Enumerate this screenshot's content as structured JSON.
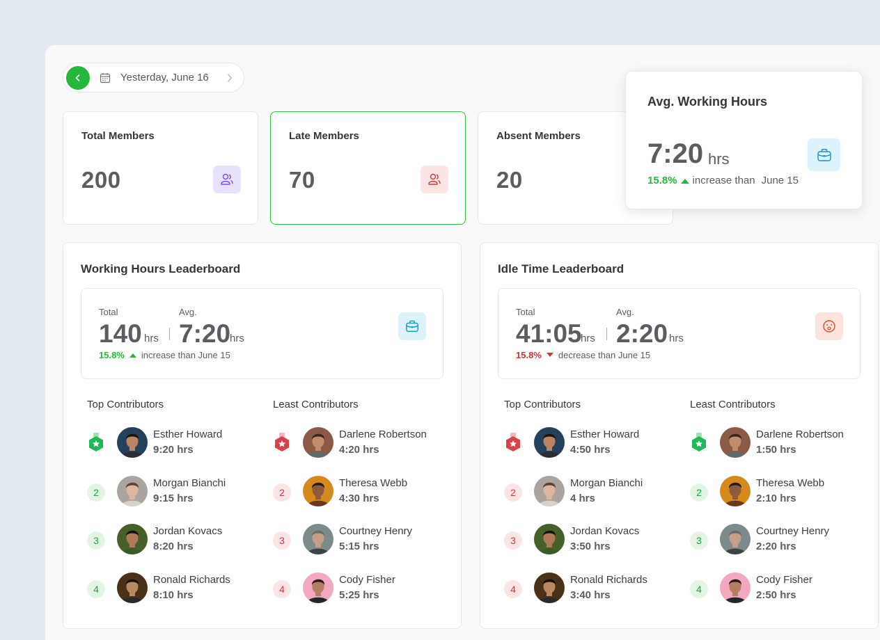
{
  "date_picker": {
    "label": "Yesterday, June 16"
  },
  "stats": {
    "total_members": {
      "title": "Total Members",
      "value": "200"
    },
    "late_members": {
      "title": "Late Members",
      "value": "70"
    },
    "absent_members": {
      "title": "Absent Members",
      "value": "20"
    },
    "avg_working_hours": {
      "title": "Avg. Working Hours",
      "value": "7:20",
      "unit": "hrs",
      "change": "15.8%",
      "change_text": "increase than",
      "compare_date": "June 15"
    }
  },
  "working_board": {
    "title": "Working Hours Leaderboard",
    "total_label": "Total",
    "total_value": "140",
    "total_unit": "hrs",
    "avg_label": "Avg.",
    "avg_value": "7:20",
    "avg_unit": "hrs",
    "change": "15.8%",
    "change_text": "increase than June 15",
    "top_title": "Top Contributors",
    "least_title": "Least Contributors",
    "top": [
      {
        "rank": "1",
        "name": "Esther Howard",
        "hours": "9:20 hrs"
      },
      {
        "rank": "2",
        "name": "Morgan Bianchi",
        "hours": "9:15 hrs"
      },
      {
        "rank": "3",
        "name": "Jordan Kovacs",
        "hours": "8:20 hrs"
      },
      {
        "rank": "4",
        "name": "Ronald Richards",
        "hours": "8:10 hrs"
      }
    ],
    "least": [
      {
        "rank": "1",
        "name": "Darlene Robertson",
        "hours": "4:20 hrs"
      },
      {
        "rank": "2",
        "name": "Theresa Webb",
        "hours": "4:30 hrs"
      },
      {
        "rank": "3",
        "name": "Courtney Henry",
        "hours": "5:15 hrs"
      },
      {
        "rank": "4",
        "name": "Cody Fisher",
        "hours": "5:25 hrs"
      }
    ]
  },
  "idle_board": {
    "title": "Idle Time Leaderboard",
    "total_label": "Total",
    "total_value": "41:05",
    "total_unit": "hrs",
    "avg_label": "Avg.",
    "avg_value": "2:20",
    "avg_unit": "hrs",
    "change": "15.8%",
    "change_text": "decrease than June 15",
    "top_title": "Top Contributors",
    "least_title": "Least Contributors",
    "top": [
      {
        "rank": "1",
        "name": "Esther Howard",
        "hours": "4:50 hrs"
      },
      {
        "rank": "2",
        "name": "Morgan Bianchi",
        "hours": "4 hrs"
      },
      {
        "rank": "3",
        "name": "Jordan Kovacs",
        "hours": "3:50 hrs"
      },
      {
        "rank": "4",
        "name": "Ronald Richards",
        "hours": "3:40 hrs"
      }
    ],
    "least": [
      {
        "rank": "1",
        "name": "Darlene Robertson",
        "hours": "1:50 hrs"
      },
      {
        "rank": "2",
        "name": "Theresa Webb",
        "hours": "2:10 hrs"
      },
      {
        "rank": "3",
        "name": "Courtney Henry",
        "hours": "2:20 hrs"
      },
      {
        "rank": "4",
        "name": "Cody Fisher",
        "hours": "2:50 hrs"
      }
    ]
  },
  "colors": {
    "green": "#22b93a",
    "red": "#c7343a",
    "purple_bg": "#e7e1fb",
    "pink_bg": "#fbe4e4",
    "blue_bg": "#ddf3fc",
    "orange_bg": "#fde3dd"
  }
}
